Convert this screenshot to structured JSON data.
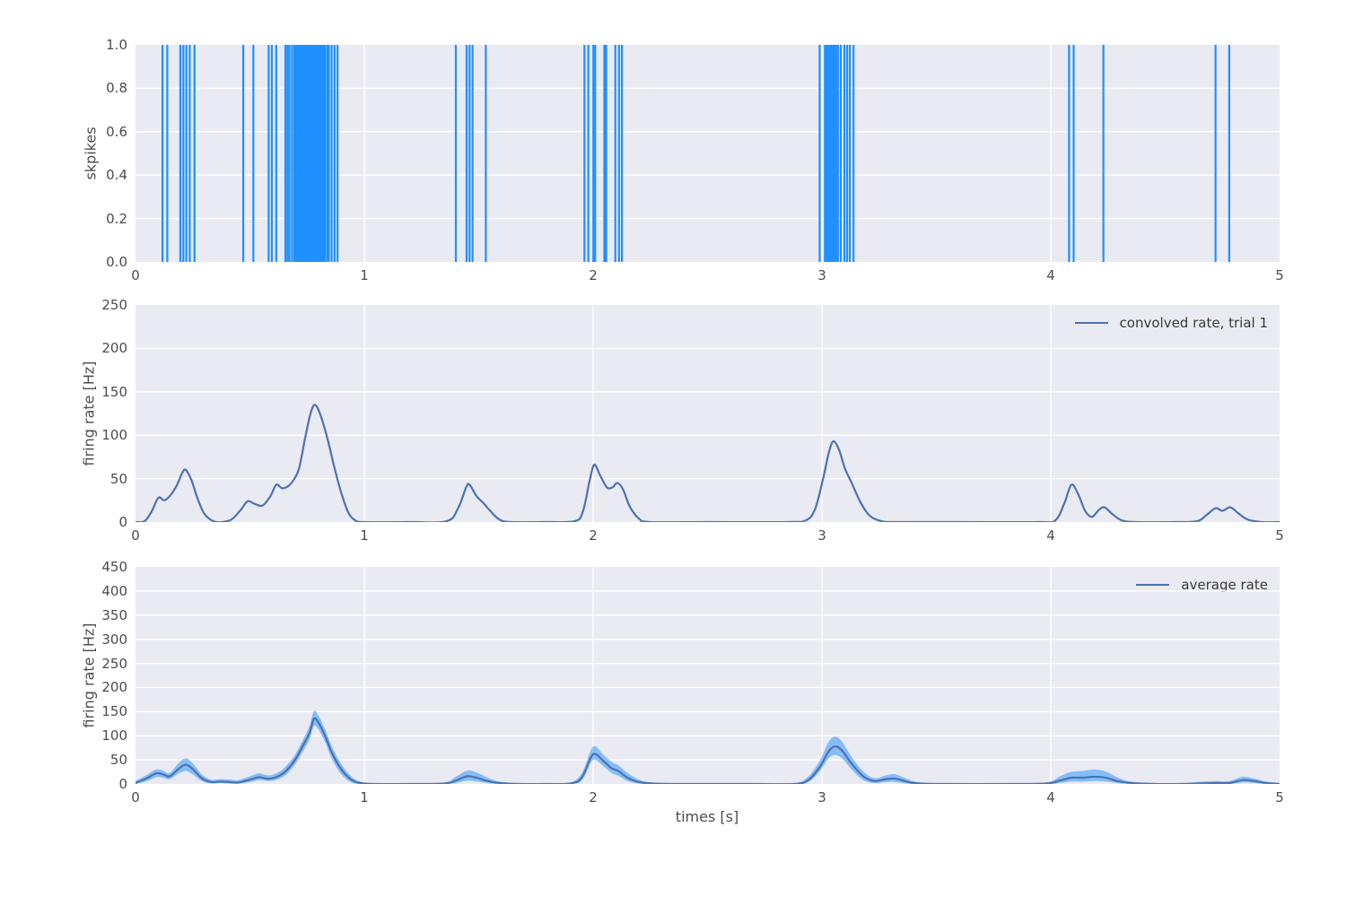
{
  "figure": {
    "page_background": "#ffffff",
    "axes_background": "#eaeaf2",
    "grid_color": "#ffffff",
    "text_color": "#4d4d4d",
    "spike_color": "#1e90ff",
    "line_color": "#4c72b0",
    "band_color": "rgba(30,144,255,0.5)"
  },
  "chart_data": [
    {
      "type": "event_raster",
      "ylabel": "skpikes",
      "xlim": [
        0,
        5
      ],
      "ylim": [
        0,
        1
      ],
      "xticks": [
        0,
        1,
        2,
        3,
        4,
        5
      ],
      "xtick_labels": [
        "0",
        "1",
        "2",
        "3",
        "4",
        "5"
      ],
      "ytick_values": [
        0,
        0.2,
        0.4,
        0.6,
        0.8,
        1.0
      ],
      "ytick_labels": [
        "0.0",
        "0.2",
        "0.4",
        "0.6",
        "0.8",
        "1.0"
      ],
      "grid": true,
      "spike_times": [
        0.118,
        0.139,
        0.196,
        0.209,
        0.222,
        0.237,
        0.258,
        0.471,
        0.515,
        0.582,
        0.596,
        0.615,
        0.655,
        0.664,
        0.673,
        0.684,
        0.694,
        0.702,
        0.709,
        0.716,
        0.723,
        0.73,
        0.737,
        0.744,
        0.751,
        0.757,
        0.763,
        0.769,
        0.775,
        0.781,
        0.787,
        0.793,
        0.8,
        0.807,
        0.814,
        0.821,
        0.828,
        0.838,
        0.845,
        0.857,
        0.87,
        0.883,
        1.4,
        1.447,
        1.46,
        1.473,
        1.531,
        1.962,
        1.979,
        2.001,
        2.009,
        2.049,
        2.057,
        2.097,
        2.113,
        2.126,
        2.99,
        3.013,
        3.02,
        3.027,
        3.034,
        3.041,
        3.048,
        3.055,
        3.062,
        3.07,
        3.082,
        3.098,
        3.11,
        3.122,
        3.138,
        4.08,
        4.1,
        4.23,
        4.72,
        4.78
      ]
    },
    {
      "type": "line",
      "legend": "convolved rate, trial 1",
      "legend_position": "upper right",
      "ylabel": "firing rate [Hz]",
      "xlim": [
        0,
        5
      ],
      "ylim": [
        0,
        250
      ],
      "xticks": [
        0,
        1,
        2,
        3,
        4,
        5
      ],
      "xtick_labels": [
        "0",
        "1",
        "2",
        "3",
        "4",
        "5"
      ],
      "ytick_values": [
        0,
        50,
        100,
        150,
        200,
        250
      ],
      "ytick_labels": [
        "0",
        "50",
        "100",
        "150",
        "200",
        "250"
      ],
      "grid": true,
      "points": [
        [
          0.0,
          0
        ],
        [
          0.04,
          1
        ],
        [
          0.07,
          12
        ],
        [
          0.1,
          28
        ],
        [
          0.125,
          25
        ],
        [
          0.15,
          30
        ],
        [
          0.18,
          42
        ],
        [
          0.205,
          57
        ],
        [
          0.22,
          60
        ],
        [
          0.245,
          48
        ],
        [
          0.27,
          28
        ],
        [
          0.3,
          10
        ],
        [
          0.34,
          1
        ],
        [
          0.38,
          0
        ],
        [
          0.42,
          3
        ],
        [
          0.46,
          14
        ],
        [
          0.49,
          24
        ],
        [
          0.52,
          21
        ],
        [
          0.555,
          19
        ],
        [
          0.59,
          30
        ],
        [
          0.615,
          43
        ],
        [
          0.64,
          39
        ],
        [
          0.665,
          41
        ],
        [
          0.69,
          48
        ],
        [
          0.715,
          62
        ],
        [
          0.74,
          95
        ],
        [
          0.765,
          125
        ],
        [
          0.785,
          135
        ],
        [
          0.81,
          122
        ],
        [
          0.84,
          95
        ],
        [
          0.87,
          62
        ],
        [
          0.9,
          33
        ],
        [
          0.93,
          11
        ],
        [
          0.96,
          2
        ],
        [
          1.0,
          0
        ],
        [
          1.2,
          0
        ],
        [
          1.36,
          1
        ],
        [
          1.41,
          16
        ],
        [
          1.445,
          40
        ],
        [
          1.46,
          43
        ],
        [
          1.49,
          30
        ],
        [
          1.52,
          22
        ],
        [
          1.55,
          13
        ],
        [
          1.59,
          3
        ],
        [
          1.64,
          0
        ],
        [
          1.8,
          0
        ],
        [
          1.92,
          1
        ],
        [
          1.955,
          12
        ],
        [
          1.985,
          48
        ],
        [
          2.005,
          66
        ],
        [
          2.03,
          54
        ],
        [
          2.06,
          40
        ],
        [
          2.085,
          40
        ],
        [
          2.105,
          45
        ],
        [
          2.13,
          38
        ],
        [
          2.16,
          18
        ],
        [
          2.2,
          4
        ],
        [
          2.25,
          0
        ],
        [
          2.5,
          0
        ],
        [
          2.85,
          0
        ],
        [
          2.93,
          2
        ],
        [
          2.97,
          15
        ],
        [
          3.005,
          50
        ],
        [
          3.03,
          80
        ],
        [
          3.05,
          93
        ],
        [
          3.075,
          83
        ],
        [
          3.1,
          62
        ],
        [
          3.13,
          45
        ],
        [
          3.17,
          22
        ],
        [
          3.21,
          7
        ],
        [
          3.26,
          1
        ],
        [
          3.32,
          0
        ],
        [
          3.6,
          0
        ],
        [
          3.95,
          0
        ],
        [
          4.02,
          2
        ],
        [
          4.06,
          22
        ],
        [
          4.09,
          43
        ],
        [
          4.12,
          32
        ],
        [
          4.15,
          13
        ],
        [
          4.18,
          6
        ],
        [
          4.21,
          14
        ],
        [
          4.235,
          17
        ],
        [
          4.27,
          9
        ],
        [
          4.31,
          2
        ],
        [
          4.37,
          0
        ],
        [
          4.55,
          0
        ],
        [
          4.64,
          1
        ],
        [
          4.68,
          8
        ],
        [
          4.72,
          16
        ],
        [
          4.75,
          13
        ],
        [
          4.785,
          17
        ],
        [
          4.82,
          10
        ],
        [
          4.86,
          3
        ],
        [
          4.92,
          0
        ],
        [
          5.0,
          0
        ]
      ]
    },
    {
      "type": "area",
      "legend": "average rate",
      "legend_position": "upper right",
      "ylabel": "firing rate [Hz]",
      "xlabel": "times [s]",
      "xlim": [
        0,
        5
      ],
      "ylim": [
        0,
        450
      ],
      "xticks": [
        0,
        1,
        2,
        3,
        4,
        5
      ],
      "xtick_labels": [
        "0",
        "1",
        "2",
        "3",
        "4",
        "5"
      ],
      "ytick_values": [
        0,
        50,
        100,
        150,
        200,
        250,
        300,
        350,
        400,
        450
      ],
      "ytick_labels": [
        "0",
        "50",
        "100",
        "150",
        "200",
        "250",
        "300",
        "350",
        "400",
        "450"
      ],
      "grid": true,
      "band": true,
      "points_format": [
        "x",
        "mean",
        "low",
        "high"
      ],
      "points": [
        [
          0.0,
          2,
          0,
          6
        ],
        [
          0.05,
          12,
          6,
          19
        ],
        [
          0.09,
          22,
          14,
          30
        ],
        [
          0.12,
          20,
          13,
          28
        ],
        [
          0.15,
          16,
          10,
          23
        ],
        [
          0.19,
          32,
          22,
          44
        ],
        [
          0.22,
          40,
          27,
          53
        ],
        [
          0.25,
          31,
          20,
          43
        ],
        [
          0.29,
          12,
          6,
          20
        ],
        [
          0.33,
          4,
          1,
          9
        ],
        [
          0.37,
          5,
          2,
          10
        ],
        [
          0.41,
          4,
          1,
          9
        ],
        [
          0.45,
          3,
          1,
          8
        ],
        [
          0.5,
          9,
          4,
          16
        ],
        [
          0.54,
          14,
          8,
          22
        ],
        [
          0.58,
          11,
          6,
          18
        ],
        [
          0.62,
          15,
          9,
          23
        ],
        [
          0.66,
          28,
          20,
          38
        ],
        [
          0.7,
          52,
          42,
          63
        ],
        [
          0.73,
          78,
          66,
          90
        ],
        [
          0.76,
          105,
          92,
          120
        ],
        [
          0.78,
          135,
          120,
          151
        ],
        [
          0.8,
          127,
          113,
          141
        ],
        [
          0.83,
          98,
          85,
          112
        ],
        [
          0.86,
          63,
          50,
          76
        ],
        [
          0.9,
          30,
          20,
          41
        ],
        [
          0.94,
          10,
          4,
          17
        ],
        [
          0.98,
          2,
          0,
          5
        ],
        [
          1.05,
          0,
          0,
          1
        ],
        [
          1.2,
          0,
          0,
          1
        ],
        [
          1.35,
          1,
          0,
          3
        ],
        [
          1.4,
          7,
          2,
          15
        ],
        [
          1.45,
          16,
          7,
          28
        ],
        [
          1.49,
          13,
          5,
          24
        ],
        [
          1.54,
          6,
          2,
          13
        ],
        [
          1.59,
          2,
          0,
          5
        ],
        [
          1.68,
          0,
          0,
          1
        ],
        [
          1.8,
          0,
          0,
          1
        ],
        [
          1.9,
          1,
          0,
          3
        ],
        [
          1.95,
          13,
          7,
          22
        ],
        [
          1.99,
          55,
          44,
          70
        ],
        [
          2.01,
          62,
          50,
          78
        ],
        [
          2.04,
          50,
          39,
          63
        ],
        [
          2.08,
          33,
          23,
          46
        ],
        [
          2.11,
          27,
          17,
          39
        ],
        [
          2.15,
          13,
          6,
          23
        ],
        [
          2.2,
          4,
          1,
          9
        ],
        [
          2.26,
          1,
          0,
          3
        ],
        [
          2.4,
          0,
          0,
          1
        ],
        [
          2.7,
          0,
          0,
          1
        ],
        [
          2.88,
          0,
          0,
          2
        ],
        [
          2.94,
          8,
          4,
          15
        ],
        [
          2.99,
          35,
          26,
          48
        ],
        [
          3.03,
          68,
          54,
          88
        ],
        [
          3.06,
          78,
          60,
          98
        ],
        [
          3.09,
          68,
          52,
          86
        ],
        [
          3.13,
          42,
          30,
          56
        ],
        [
          3.18,
          16,
          8,
          26
        ],
        [
          3.23,
          6,
          2,
          12
        ],
        [
          3.28,
          10,
          4,
          18
        ],
        [
          3.32,
          11,
          4,
          20
        ],
        [
          3.37,
          5,
          1,
          11
        ],
        [
          3.42,
          1,
          0,
          4
        ],
        [
          3.55,
          0,
          0,
          1
        ],
        [
          3.8,
          0,
          0,
          1
        ],
        [
          3.98,
          1,
          0,
          3
        ],
        [
          4.04,
          7,
          2,
          16
        ],
        [
          4.09,
          13,
          5,
          25
        ],
        [
          4.14,
          13,
          5,
          27
        ],
        [
          4.19,
          15,
          6,
          30
        ],
        [
          4.24,
          13,
          5,
          26
        ],
        [
          4.29,
          6,
          2,
          14
        ],
        [
          4.35,
          2,
          0,
          5
        ],
        [
          4.45,
          0,
          0,
          2
        ],
        [
          4.58,
          0,
          0,
          2
        ],
        [
          4.66,
          1,
          0,
          5
        ],
        [
          4.72,
          2,
          0,
          6
        ],
        [
          4.78,
          2,
          0,
          6
        ],
        [
          4.84,
          8,
          3,
          15
        ],
        [
          4.89,
          6,
          2,
          11
        ],
        [
          4.94,
          2,
          0,
          5
        ],
        [
          5.0,
          0,
          0,
          2
        ]
      ]
    }
  ]
}
